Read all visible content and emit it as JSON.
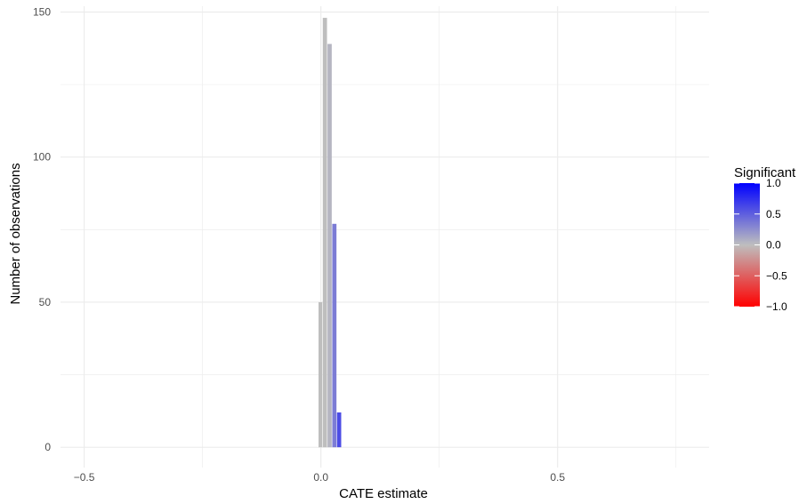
{
  "chart_data": {
    "type": "bar",
    "chart_kind": "histogram",
    "xlabel": "CATE estimate",
    "ylabel": "Number of observations",
    "xlim": [
      -0.55,
      0.82
    ],
    "ylim": [
      -7,
      152
    ],
    "x_ticks": [
      {
        "value": -0.5,
        "label": "−0.5"
      },
      {
        "value": 0.0,
        "label": "0.0"
      },
      {
        "value": 0.5,
        "label": "0.5"
      }
    ],
    "y_ticks": [
      {
        "value": 0,
        "label": "0"
      },
      {
        "value": 50,
        "label": "50"
      },
      {
        "value": 100,
        "label": "100"
      },
      {
        "value": 150,
        "label": "150"
      }
    ],
    "x_minor": [
      -0.25,
      0.25,
      0.75
    ],
    "y_minor": [
      25,
      75,
      125
    ],
    "grid": true,
    "bars": [
      {
        "x_start": -0.005,
        "x_end": 0.004,
        "value": 50,
        "significant": 0.0
      },
      {
        "x_start": 0.004,
        "x_end": 0.014,
        "value": 148,
        "significant": 0.0
      },
      {
        "x_start": 0.014,
        "x_end": 0.024,
        "value": 139,
        "significant": 0.05
      },
      {
        "x_start": 0.024,
        "x_end": 0.034,
        "value": 77,
        "significant": 0.35
      },
      {
        "x_start": 0.034,
        "x_end": 0.044,
        "value": 12,
        "significant": 0.6
      }
    ],
    "legend": {
      "title": "Significant",
      "position": "right",
      "type": "colorbar",
      "range": [
        -1.0,
        1.0
      ],
      "ticks": [
        {
          "value": 1.0,
          "label": "1.0"
        },
        {
          "value": 0.5,
          "label": "0.5"
        },
        {
          "value": 0.0,
          "label": "0.0"
        },
        {
          "value": -0.5,
          "label": "−0.5"
        },
        {
          "value": -1.0,
          "label": "−1.0"
        }
      ],
      "colors": {
        "low": "#ff0000",
        "mid": "#bebebe",
        "high": "#0000ff"
      }
    },
    "colors": {
      "grid": "#ebebeb",
      "tick_text": "#4d4d4d"
    }
  }
}
